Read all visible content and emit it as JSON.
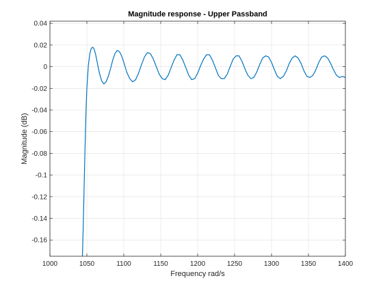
{
  "chart_data": {
    "type": "line",
    "title": "Magnitude response - Upper Passband",
    "xlabel": "Frequency rad/s",
    "ylabel": "Magnitude (dB)",
    "xlim": [
      1000,
      1400
    ],
    "ylim": [
      -0.175,
      0.042
    ],
    "x_ticks": [
      1000,
      1050,
      1100,
      1150,
      1200,
      1250,
      1300,
      1350,
      1400
    ],
    "x_tick_labels": [
      "1000",
      "1050",
      "1100",
      "1150",
      "1200",
      "1250",
      "1300",
      "1350",
      "1400"
    ],
    "y_ticks": [
      0.04,
      0.02,
      0,
      -0.02,
      -0.04,
      -0.06,
      -0.08,
      -0.1,
      -0.12,
      -0.14,
      -0.16
    ],
    "y_tick_labels": [
      "0.04",
      "0.02",
      "0",
      "-0.02",
      "-0.04",
      "-0.06",
      "-0.08",
      "-0.1",
      "-0.12",
      "-0.14",
      "-0.16"
    ],
    "grid": true,
    "line_color": "#0072bd",
    "series": [
      {
        "x": [
          1044,
          1045,
          1046,
          1047,
          1048,
          1049,
          1050,
          1052,
          1054,
          1056,
          1058,
          1060,
          1062,
          1064,
          1067,
          1070,
          1073,
          1076,
          1079,
          1082,
          1085,
          1088,
          1091,
          1094,
          1097,
          1100,
          1104,
          1108,
          1112,
          1116,
          1120,
          1124,
          1128,
          1132,
          1136,
          1140,
          1144,
          1148,
          1152,
          1156,
          1160,
          1164,
          1168,
          1172,
          1176,
          1180,
          1184,
          1188,
          1192,
          1196,
          1200,
          1204,
          1208,
          1212,
          1216,
          1220,
          1224,
          1228,
          1232,
          1236,
          1240,
          1244,
          1248,
          1252,
          1256,
          1260,
          1264,
          1268,
          1272,
          1276,
          1280,
          1284,
          1288,
          1292,
          1296,
          1300,
          1304,
          1308,
          1312,
          1316,
          1320,
          1324,
          1328,
          1332,
          1336,
          1340,
          1344,
          1348,
          1352,
          1356,
          1360,
          1364,
          1368,
          1372,
          1376,
          1380,
          1384,
          1388,
          1392,
          1396,
          1400
        ],
        "y": [
          -0.175,
          -0.15,
          -0.12,
          -0.09,
          -0.062,
          -0.038,
          -0.02,
          0.001,
          0.012,
          0.017,
          0.018,
          0.016,
          0.011,
          0.004,
          -0.006,
          -0.013,
          -0.016,
          -0.014,
          -0.009,
          -0.002,
          0.006,
          0.012,
          0.015,
          0.014,
          0.01,
          0.004,
          -0.005,
          -0.011,
          -0.014,
          -0.012,
          -0.006,
          0.002,
          0.009,
          0.013,
          0.012,
          0.007,
          0.0,
          -0.007,
          -0.011,
          -0.012,
          -0.008,
          -0.001,
          0.006,
          0.011,
          0.011,
          0.006,
          -0.001,
          -0.008,
          -0.012,
          -0.011,
          -0.006,
          0.001,
          0.007,
          0.011,
          0.011,
          0.006,
          -0.001,
          -0.008,
          -0.011,
          -0.011,
          -0.007,
          0.0,
          0.007,
          0.01,
          0.01,
          0.005,
          -0.002,
          -0.008,
          -0.011,
          -0.01,
          -0.005,
          0.002,
          0.008,
          0.01,
          0.009,
          0.004,
          -0.003,
          -0.009,
          -0.011,
          -0.009,
          -0.004,
          0.003,
          0.008,
          0.01,
          0.008,
          0.003,
          -0.004,
          -0.009,
          -0.01,
          -0.008,
          -0.003,
          0.004,
          0.009,
          0.01,
          0.008,
          0.003,
          -0.003,
          -0.008,
          -0.01,
          -0.009,
          -0.01
        ]
      }
    ]
  }
}
